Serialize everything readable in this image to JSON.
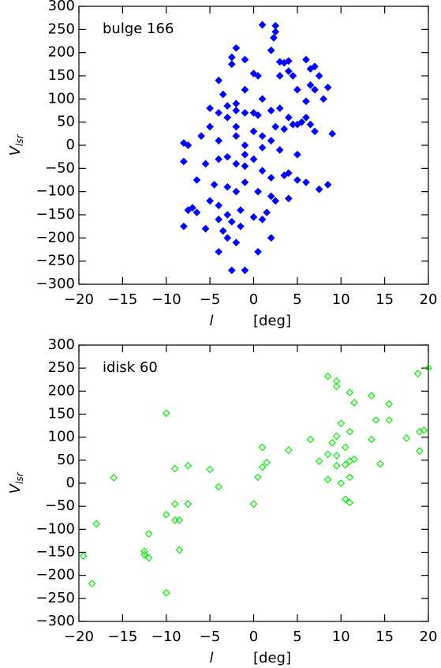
{
  "chart_data": [
    {
      "type": "scatter",
      "annotation": "bulge 166",
      "color": "#0000ff",
      "marker": "filled-diamond",
      "xlabel": [
        "l",
        "[deg]"
      ],
      "ylabel": [
        "V",
        "lsr"
      ],
      "xlim": [
        -20,
        20
      ],
      "ylim": [
        -300,
        300
      ],
      "xticks": [
        {
          "value": -20,
          "label": "−20"
        },
        {
          "value": -15,
          "label": "−15"
        },
        {
          "value": -10,
          "label": "−10"
        },
        {
          "value": -5,
          "label": "−5"
        },
        0,
        5,
        10,
        15,
        20
      ],
      "yticks": [
        {
          "value": -300,
          "label": "−300"
        },
        {
          "value": -250,
          "label": "−250"
        },
        {
          "value": -200,
          "label": "−200"
        },
        {
          "value": -150,
          "label": "−150"
        },
        {
          "value": -100,
          "label": "−100"
        },
        {
          "value": -50,
          "label": "−50"
        },
        0,
        50,
        100,
        150,
        200,
        250,
        300
      ],
      "x": [
        1,
        2.5,
        2.5,
        2.3,
        -2,
        2,
        -2.5,
        -2.5,
        -1,
        3,
        3.5,
        4,
        6,
        7,
        6.5,
        7.5,
        6.5,
        7,
        8.5,
        8,
        6,
        4,
        3,
        4.5,
        5,
        0,
        0.5,
        -4,
        -3.5,
        -1,
        1,
        -2,
        -3,
        -5,
        -4,
        -2,
        -1,
        0,
        0.5,
        2,
        3,
        4,
        5.5,
        6,
        4.5,
        5,
        6.5,
        7,
        9,
        -3,
        -5,
        -2,
        0,
        1,
        2.5,
        3.5,
        -6,
        -4,
        -2,
        -1,
        1,
        2,
        3,
        5,
        -8,
        -7.5,
        -8,
        -5.5,
        -4,
        -3,
        -2,
        -1,
        0,
        -1,
        1,
        2,
        3.5,
        4,
        5,
        6,
        8.5,
        7.5,
        -6.5,
        -4.5,
        -3,
        -2,
        -1,
        0.5,
        2,
        2.5,
        4,
        -5,
        -7,
        -7.5,
        -6.5,
        -4,
        -3,
        -1.5,
        0,
        1,
        1.5,
        -2.5,
        -4,
        -8,
        -5.5,
        -3.5,
        -3,
        -2,
        -4,
        0.5,
        -2.5,
        -1,
        2,
        -1.5
      ],
      "values": [
        260,
        258,
        245,
        232,
        210,
        205,
        190,
        175,
        185,
        180,
        178,
        182,
        185,
        170,
        165,
        150,
        130,
        120,
        125,
        100,
        95,
        160,
        150,
        150,
        120,
        155,
        150,
        140,
        110,
        120,
        100,
        90,
        85,
        80,
        70,
        75,
        70,
        70,
        65,
        75,
        80,
        60,
        50,
        60,
        45,
        45,
        45,
        30,
        25,
        60,
        40,
        40,
        30,
        20,
        40,
        35,
        20,
        10,
        20,
        0,
        -5,
        10,
        -10,
        -20,
        5,
        0,
        -35,
        -40,
        -30,
        -25,
        -40,
        -45,
        -30,
        -20,
        -55,
        -70,
        -65,
        -60,
        -75,
        -80,
        -85,
        -95,
        -75,
        -85,
        -90,
        -100,
        -80,
        -100,
        -110,
        -120,
        -115,
        -120,
        -135,
        -140,
        -145,
        -130,
        -150,
        -140,
        -155,
        -160,
        -145,
        -165,
        -160,
        -175,
        -180,
        -185,
        -200,
        -210,
        -230,
        -230,
        -270,
        -270,
        -200,
        -175
      ]
    },
    {
      "type": "scatter",
      "annotation": "idisk 60",
      "color": "#00ee00",
      "marker": "open-diamond",
      "xlabel": [
        "l",
        "[deg]"
      ],
      "ylabel": [
        "V",
        "lsr"
      ],
      "xlim": [
        -20,
        20
      ],
      "ylim": [
        -300,
        300
      ],
      "xticks": [
        {
          "value": -20,
          "label": "−20"
        },
        {
          "value": -15,
          "label": "−15"
        },
        {
          "value": -10,
          "label": "−10"
        },
        {
          "value": -5,
          "label": "−5"
        },
        0,
        5,
        10,
        15,
        20
      ],
      "yticks": [
        {
          "value": -300,
          "label": "−300"
        },
        {
          "value": -250,
          "label": "−250"
        },
        {
          "value": -200,
          "label": "−200"
        },
        {
          "value": -150,
          "label": "−150"
        },
        {
          "value": -100,
          "label": "−100"
        },
        {
          "value": -50,
          "label": "−50"
        },
        0,
        50,
        100,
        150,
        200,
        250,
        300
      ],
      "x": [
        18.8,
        20,
        8.5,
        9.5,
        9.5,
        11,
        13.5,
        11.5,
        15.5,
        -10,
        14,
        15.5,
        10,
        6.5,
        9.5,
        11,
        13.5,
        17.5,
        19,
        19.5,
        8.5,
        9.5,
        7.5,
        10.5,
        9,
        11.5,
        11,
        14.5,
        10.5,
        9.5,
        8.5,
        10,
        11,
        19,
        4,
        1,
        1.5,
        1,
        0.5,
        -5,
        -7.5,
        -9,
        -4,
        -16,
        0,
        10.5,
        11,
        -9,
        -7.5,
        -10,
        -9,
        -8.5,
        -18,
        -12,
        -8.5,
        -12.5,
        -12.5,
        -12,
        -19.5,
        -18.5,
        -10
      ],
      "values": [
        238,
        250,
        232,
        222,
        210,
        197,
        190,
        175,
        172,
        152,
        137,
        137,
        130,
        95,
        102,
        112,
        95,
        98,
        112,
        115,
        63,
        60,
        48,
        78,
        88,
        52,
        48,
        42,
        40,
        38,
        8,
        0,
        13,
        70,
        72,
        78,
        45,
        35,
        13,
        30,
        38,
        32,
        -8,
        12,
        -45,
        -35,
        -42,
        -45,
        -45,
        -68,
        -80,
        -80,
        -88,
        -110,
        -145,
        -148,
        -155,
        -162,
        -158,
        -218,
        -238
      ]
    }
  ]
}
